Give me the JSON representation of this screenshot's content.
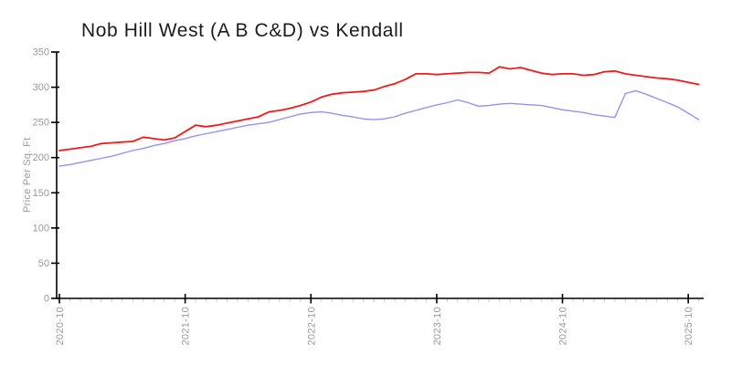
{
  "page": {
    "background": "#ffffff"
  },
  "colors": {
    "title_text": "#1c1c1c",
    "axis": "#000000",
    "major_tick": "#000000",
    "minor_tick": "#c9c9c9",
    "tick_label": "#9a9a9a",
    "red_series": "#ee1c1c",
    "blue_series": "#9393ef"
  },
  "chart_data": {
    "type": "line",
    "title": "Nob Hill West (A B C&D) vs Kendall",
    "xlabel": "",
    "ylabel": "Price Per Sq. Ft",
    "ylim": [
      0,
      350
    ],
    "y_ticks": [
      0,
      50,
      100,
      150,
      200,
      250,
      300,
      350
    ],
    "x_major_ticks": [
      "2020-10",
      "2021-10",
      "2022-10",
      "2023-10",
      "2024-10",
      "2025-10"
    ],
    "grid": false,
    "legend_position": "none",
    "x": [
      "2020-10",
      "2020-11",
      "2020-12",
      "2021-01",
      "2021-02",
      "2021-03",
      "2021-04",
      "2021-05",
      "2021-06",
      "2021-07",
      "2021-08",
      "2021-09",
      "2021-10",
      "2021-11",
      "2021-12",
      "2022-01",
      "2022-02",
      "2022-03",
      "2022-04",
      "2022-05",
      "2022-06",
      "2022-07",
      "2022-08",
      "2022-09",
      "2022-10",
      "2022-11",
      "2022-12",
      "2023-01",
      "2023-02",
      "2023-03",
      "2023-04",
      "2023-05",
      "2023-06",
      "2023-07",
      "2023-08",
      "2023-09",
      "2023-10",
      "2023-11",
      "2023-12",
      "2024-01",
      "2024-02",
      "2024-03",
      "2024-04",
      "2024-05",
      "2024-06",
      "2024-07",
      "2024-08",
      "2024-09",
      "2024-10",
      "2024-11",
      "2024-12",
      "2025-01",
      "2025-02",
      "2025-03",
      "2025-04",
      "2025-05",
      "2025-06",
      "2025-07",
      "2025-08",
      "2025-09",
      "2025-10",
      "2025-11"
    ],
    "series": [
      {
        "name": "Nob Hill West (A B C&D)",
        "color": "#ee1c1c",
        "stroke_width": 1.8,
        "values": [
          210,
          212,
          214,
          216,
          220,
          221,
          222,
          223,
          229,
          227,
          225,
          228,
          237,
          246,
          244,
          246,
          249,
          252,
          255,
          258,
          265,
          267,
          270,
          274,
          279,
          286,
          290,
          292,
          293,
          294,
          296,
          301,
          305,
          311,
          319,
          319,
          318,
          319,
          320,
          321,
          321,
          320,
          329,
          326,
          328,
          324,
          320,
          318,
          319,
          319,
          317,
          318,
          322,
          323,
          319,
          317,
          315,
          313,
          312,
          310,
          307,
          304
        ]
      },
      {
        "name": "Kendall",
        "color": "#9393ef",
        "stroke_width": 1.4,
        "values": [
          188,
          190,
          193,
          196,
          199,
          202,
          206,
          210,
          213,
          217,
          220,
          224,
          227,
          231,
          234,
          237,
          240,
          243,
          246,
          248,
          250,
          254,
          258,
          262,
          264,
          265,
          263,
          260,
          258,
          255,
          254,
          255,
          258,
          263,
          267,
          271,
          275,
          278,
          282,
          278,
          273,
          274,
          276,
          277,
          276,
          275,
          274,
          271,
          268,
          266,
          264,
          261,
          259,
          257,
          291,
          295,
          290,
          284,
          278,
          272,
          263,
          254
        ]
      }
    ]
  }
}
